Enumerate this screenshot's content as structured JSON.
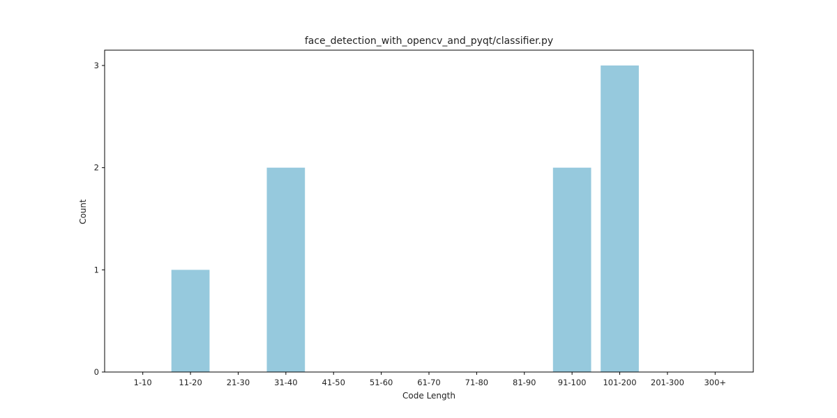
{
  "chart_data": {
    "type": "bar",
    "title": "face_detection_with_opencv_and_pyqt/classifier.py",
    "xlabel": "Code Length",
    "ylabel": "Count",
    "categories": [
      "1-10",
      "11-20",
      "21-30",
      "31-40",
      "41-50",
      "51-60",
      "61-70",
      "71-80",
      "81-90",
      "91-100",
      "101-200",
      "201-300",
      "300+"
    ],
    "values": [
      0,
      1,
      0,
      2,
      0,
      0,
      0,
      0,
      0,
      2,
      3,
      0,
      0
    ],
    "ylim": [
      0,
      3.15
    ],
    "yticks": [
      0,
      1,
      2,
      3
    ],
    "grid": false,
    "bar_color": "#96c9dd"
  }
}
